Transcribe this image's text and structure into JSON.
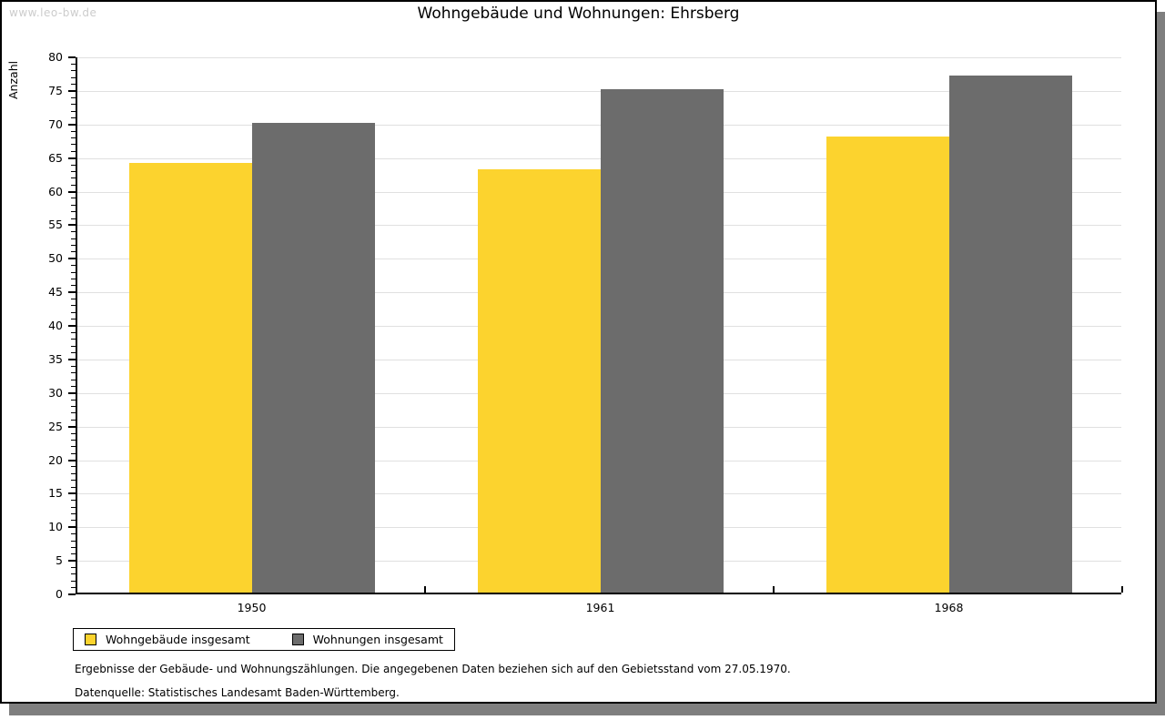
{
  "watermark": "www.leo-bw.de",
  "chart_data": {
    "type": "bar",
    "title": "Wohngebäude und Wohnungen: Ehrsberg",
    "categories": [
      "1950",
      "1961",
      "1968"
    ],
    "series": [
      {
        "name": "Wohngebäude insgesamt",
        "color": "#fcd32e",
        "values": [
          64,
          63,
          68
        ]
      },
      {
        "name": "Wohnungen insgesamt",
        "color": "#6c6c6c",
        "values": [
          70,
          75,
          77
        ]
      }
    ],
    "xlabel": "",
    "ylabel": "Anzahl",
    "ylim": [
      0,
      80
    ],
    "ytick_major": 5,
    "ytick_minor": 1,
    "grid": "horizontal-major",
    "legend_position": "bottom-left"
  },
  "notes": [
    "Ergebnisse der Gebäude- und Wohnungszählungen. Die angegebenen Daten beziehen sich auf den Gebietsstand vom 27.05.1970.",
    "Datenquelle: Statistisches Landesamt Baden-Württemberg."
  ]
}
